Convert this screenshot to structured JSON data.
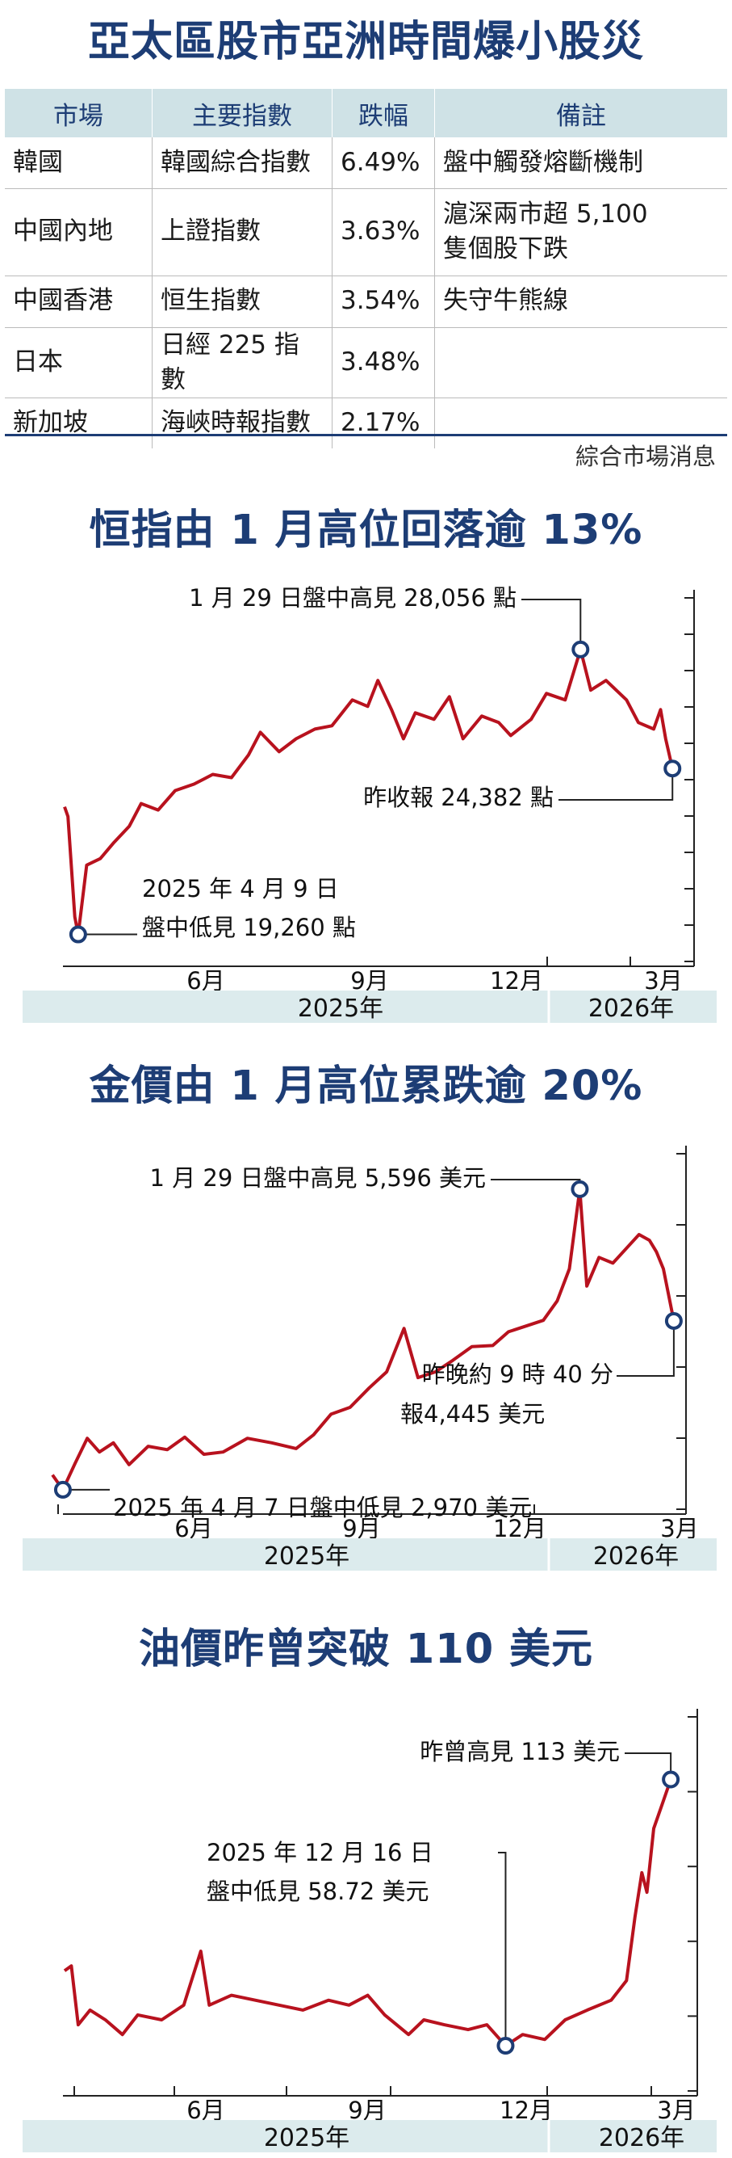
{
  "main_title": "亞太區股市亞洲時間爆小股災",
  "table": {
    "headers": [
      "市場",
      "主要指數",
      "跌幅",
      "備註"
    ],
    "rows": [
      {
        "market": "韓國",
        "index": "韓國綜合指數",
        "drop": "6.49%",
        "note": [
          "盤中觸發熔斷機制"
        ]
      },
      {
        "market": "中國內地",
        "index": "上證指數",
        "drop": "3.63%",
        "note": [
          "滬深兩市超 5,100",
          "隻個股下跌"
        ]
      },
      {
        "market": "中國香港",
        "index": "恒生指數",
        "drop": "3.54%",
        "note": [
          "失守牛熊線"
        ]
      },
      {
        "market": "日本",
        "index": "日經 225 指數",
        "drop": "3.48%",
        "note": [
          ""
        ]
      },
      {
        "market": "新加坡",
        "index": "海峽時報指數",
        "drop": "2.17%",
        "note": [
          ""
        ]
      }
    ],
    "source": "綜合市場消息"
  },
  "accent_color": "#b8121e",
  "title_color": "#1d3d75",
  "band_color": "#dcebed",
  "chart_data": [
    {
      "type": "line",
      "title": "恒指由 1 月高位回落逾 13%",
      "x_start": "2025-04-01",
      "x_end": "2026-03-31",
      "month_ticks": [
        "6月",
        "9月",
        "12月",
        "3月"
      ],
      "years": [
        "2025年",
        "2026年"
      ],
      "ylim": [
        18800,
        29400
      ],
      "gridlines": false,
      "series": [
        {
          "values": [
            [
              "2025-04-01",
              23200
            ],
            [
              "2025-04-03",
              22900
            ],
            [
              "2025-04-07",
              19800
            ],
            [
              "2025-04-09",
              19260
            ],
            [
              "2025-04-14",
              21400
            ],
            [
              "2025-04-22",
              21600
            ],
            [
              "2025-04-30",
              22100
            ],
            [
              "2025-05-09",
              22600
            ],
            [
              "2025-05-16",
              23300
            ],
            [
              "2025-05-26",
              23100
            ],
            [
              "2025-06-05",
              23700
            ],
            [
              "2025-06-16",
              23900
            ],
            [
              "2025-06-27",
              24200
            ],
            [
              "2025-07-08",
              24100
            ],
            [
              "2025-07-18",
              24800
            ],
            [
              "2025-07-25",
              25500
            ],
            [
              "2025-08-05",
              24900
            ],
            [
              "2025-08-15",
              25300
            ],
            [
              "2025-08-26",
              25600
            ],
            [
              "2025-09-05",
              25700
            ],
            [
              "2025-09-17",
              26500
            ],
            [
              "2025-09-26",
              26300
            ],
            [
              "2025-10-02",
              27100
            ],
            [
              "2025-10-10",
              26200
            ],
            [
              "2025-10-17",
              25300
            ],
            [
              "2025-10-24",
              26100
            ],
            [
              "2025-11-04",
              25900
            ],
            [
              "2025-11-13",
              26600
            ],
            [
              "2025-11-21",
              25300
            ],
            [
              "2025-12-02",
              26000
            ],
            [
              "2025-12-12",
              25800
            ],
            [
              "2025-12-19",
              25400
            ],
            [
              "2025-12-31",
              25900
            ],
            [
              "2026-01-09",
              26700
            ],
            [
              "2026-01-20",
              26500
            ],
            [
              "2026-01-29",
              28056
            ],
            [
              "2026-02-04",
              26800
            ],
            [
              "2026-02-13",
              27100
            ],
            [
              "2026-02-25",
              26500
            ],
            [
              "2026-03-04",
              25800
            ],
            [
              "2026-03-13",
              25600
            ],
            [
              "2026-03-17",
              26200
            ],
            [
              "2026-03-20",
              25300
            ],
            [
              "2026-03-24",
              24382
            ]
          ]
        }
      ],
      "annotations": {
        "high": {
          "date": "2026-01-29",
          "value": 28056,
          "text": "1 月 29 日盤中高見 28,056 點"
        },
        "low": {
          "date": "2025-04-09",
          "value": 19260,
          "text": [
            "2025 年 4 月 9 日",
            "盤中低見 19,260 點"
          ]
        },
        "last": {
          "date": "2026-03-24",
          "value": 24382,
          "text": "昨收報 24,382 點"
        }
      }
    },
    {
      "type": "line",
      "title": "金價由 1 月高位累跌逾 20%",
      "x_start": "2025-04-01",
      "x_end": "2026-03-31",
      "month_ticks": [
        "6月",
        "9月",
        "12月",
        "3月"
      ],
      "years": [
        "2025年",
        "2026年"
      ],
      "ylim": [
        2800,
        5800
      ],
      "gridlines": false,
      "series": [
        {
          "values": [
            [
              "2025-04-01",
              3100
            ],
            [
              "2025-04-07",
              2970
            ],
            [
              "2025-04-14",
              3200
            ],
            [
              "2025-04-21",
              3420
            ],
            [
              "2025-04-28",
              3300
            ],
            [
              "2025-05-06",
              3380
            ],
            [
              "2025-05-15",
              3190
            ],
            [
              "2025-05-26",
              3350
            ],
            [
              "2025-06-06",
              3320
            ],
            [
              "2025-06-16",
              3430
            ],
            [
              "2025-06-27",
              3280
            ],
            [
              "2025-07-08",
              3300
            ],
            [
              "2025-07-22",
              3420
            ],
            [
              "2025-08-05",
              3380
            ],
            [
              "2025-08-19",
              3330
            ],
            [
              "2025-08-29",
              3450
            ],
            [
              "2025-09-08",
              3630
            ],
            [
              "2025-09-19",
              3690
            ],
            [
              "2025-09-30",
              3860
            ],
            [
              "2025-10-10",
              4000
            ],
            [
              "2025-10-20",
              4380
            ],
            [
              "2025-10-28",
              3950
            ],
            [
              "2025-11-07",
              4000
            ],
            [
              "2025-11-17",
              4100
            ],
            [
              "2025-11-28",
              4220
            ],
            [
              "2025-12-10",
              4230
            ],
            [
              "2025-12-19",
              4350
            ],
            [
              "2025-12-29",
              4400
            ],
            [
              "2026-01-08",
              4450
            ],
            [
              "2026-01-16",
              4620
            ],
            [
              "2026-01-23",
              4900
            ],
            [
              "2026-01-29",
              5596
            ],
            [
              "2026-02-02",
              4750
            ],
            [
              "2026-02-09",
              5000
            ],
            [
              "2026-02-17",
              4950
            ],
            [
              "2026-02-26",
              5100
            ],
            [
              "2026-03-04",
              5200
            ],
            [
              "2026-03-10",
              5150
            ],
            [
              "2026-03-14",
              5050
            ],
            [
              "2026-03-18",
              4900
            ],
            [
              "2026-03-24",
              4445
            ]
          ]
        }
      ],
      "annotations": {
        "high": {
          "date": "2026-01-29",
          "value": 5596,
          "text": "1 月 29 日盤中高見 5,596 美元"
        },
        "low": {
          "date": "2025-04-07",
          "value": 2970,
          "text": "2025 年 4 月 7 日盤中低見 2,970 美元"
        },
        "last": {
          "date": "2026-03-24",
          "value": 4445,
          "text": [
            "昨晚約 9 時 40 分",
            "報4,445 美元"
          ]
        }
      }
    },
    {
      "type": "line",
      "title": "油價昨曾突破 110 美元",
      "x_start": "2025-04-01",
      "x_end": "2026-03-31",
      "month_ticks": [
        "6月",
        "9月",
        "12月",
        "3月"
      ],
      "years": [
        "2025年",
        "2026年"
      ],
      "ylim": [
        50,
        120
      ],
      "gridlines": false,
      "series": [
        {
          "values": [
            [
              "2025-04-01",
              74
            ],
            [
              "2025-04-05",
              75
            ],
            [
              "2025-04-09",
              63
            ],
            [
              "2025-04-16",
              66
            ],
            [
              "2025-04-25",
              64
            ],
            [
              "2025-05-05",
              61
            ],
            [
              "2025-05-14",
              65
            ],
            [
              "2025-05-28",
              64
            ],
            [
              "2025-06-10",
              67
            ],
            [
              "2025-06-20",
              78
            ],
            [
              "2025-06-25",
              67
            ],
            [
              "2025-07-08",
              69
            ],
            [
              "2025-07-22",
              68
            ],
            [
              "2025-08-05",
              67
            ],
            [
              "2025-08-19",
              66
            ],
            [
              "2025-09-03",
              68
            ],
            [
              "2025-09-15",
              67
            ],
            [
              "2025-09-26",
              69
            ],
            [
              "2025-10-06",
              65
            ],
            [
              "2025-10-20",
              61
            ],
            [
              "2025-10-29",
              64
            ],
            [
              "2025-11-10",
              63
            ],
            [
              "2025-11-24",
              62
            ],
            [
              "2025-12-05",
              63
            ],
            [
              "2025-12-16",
              58.72
            ],
            [
              "2025-12-26",
              61
            ],
            [
              "2026-01-08",
              60
            ],
            [
              "2026-01-20",
              64
            ],
            [
              "2026-02-02",
              66
            ],
            [
              "2026-02-16",
              68
            ],
            [
              "2026-02-25",
              72
            ],
            [
              "2026-03-02",
              85
            ],
            [
              "2026-03-06",
              94
            ],
            [
              "2026-03-09",
              90
            ],
            [
              "2026-03-13",
              103
            ],
            [
              "2026-03-18",
              108
            ],
            [
              "2026-03-23",
              113
            ]
          ]
        }
      ],
      "annotations": {
        "high": {
          "date": "2026-03-23",
          "value": 113,
          "text": "昨曾高見 113 美元"
        },
        "low": {
          "date": "2025-12-16",
          "value": 58.72,
          "text": [
            "2025 年 12 月 16 日",
            "盤中低見 58.72 美元"
          ]
        }
      }
    }
  ]
}
